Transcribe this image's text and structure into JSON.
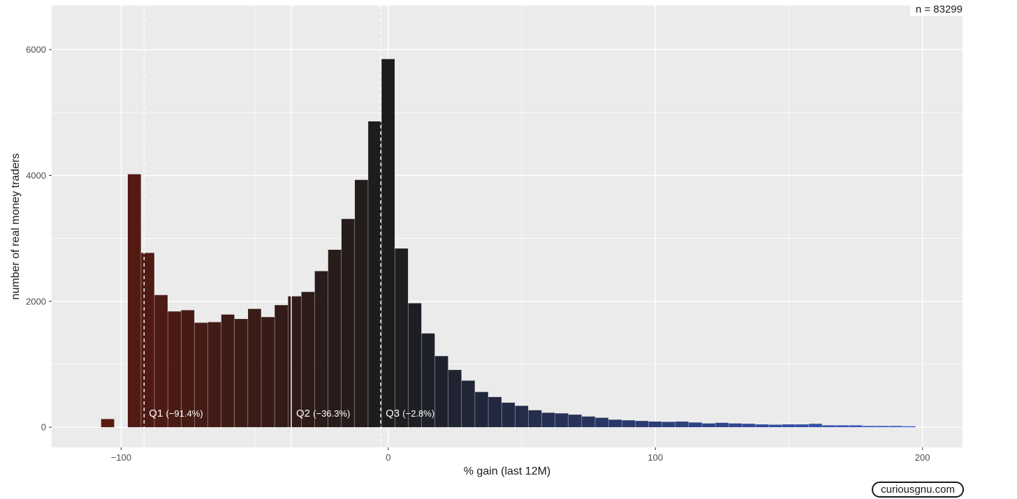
{
  "chart_data": {
    "type": "bar",
    "subtype": "histogram",
    "xlabel": "% gain (last 12M)",
    "ylabel": "number of real money traders",
    "xlim": [
      -126,
      215
    ],
    "ylim": [
      -320,
      6700
    ],
    "xticks": [
      -100,
      0,
      100,
      200
    ],
    "xtick_labels": [
      "−100",
      "0",
      "100",
      "200"
    ],
    "yticks": [
      0,
      2000,
      4000,
      6000
    ],
    "ytick_labels": [
      "0",
      "2000",
      "4000",
      "6000"
    ],
    "grid": true,
    "bin_width": 5,
    "bins": [
      {
        "x0": -107.5,
        "value": 130
      },
      {
        "x0": -97.5,
        "value": 4020
      },
      {
        "x0": -92.5,
        "value": 2770
      },
      {
        "x0": -87.5,
        "value": 2100
      },
      {
        "x0": -82.5,
        "value": 1840
      },
      {
        "x0": -77.5,
        "value": 1860
      },
      {
        "x0": -72.5,
        "value": 1660
      },
      {
        "x0": -67.5,
        "value": 1670
      },
      {
        "x0": -62.5,
        "value": 1790
      },
      {
        "x0": -57.5,
        "value": 1720
      },
      {
        "x0": -52.5,
        "value": 1880
      },
      {
        "x0": -47.5,
        "value": 1750
      },
      {
        "x0": -42.5,
        "value": 1940
      },
      {
        "x0": -37.5,
        "value": 2080
      },
      {
        "x0": -32.5,
        "value": 2150
      },
      {
        "x0": -27.5,
        "value": 2480
      },
      {
        "x0": -22.5,
        "value": 2820
      },
      {
        "x0": -17.5,
        "value": 3310
      },
      {
        "x0": -12.5,
        "value": 3930
      },
      {
        "x0": -7.5,
        "value": 4860
      },
      {
        "x0": -2.5,
        "value": 5850
      },
      {
        "x0": 2.5,
        "value": 2840
      },
      {
        "x0": 7.5,
        "value": 1970
      },
      {
        "x0": 12.5,
        "value": 1490
      },
      {
        "x0": 17.5,
        "value": 1130
      },
      {
        "x0": 22.5,
        "value": 910
      },
      {
        "x0": 27.5,
        "value": 740
      },
      {
        "x0": 32.5,
        "value": 560
      },
      {
        "x0": 37.5,
        "value": 480
      },
      {
        "x0": 42.5,
        "value": 390
      },
      {
        "x0": 47.5,
        "value": 340
      },
      {
        "x0": 52.5,
        "value": 270
      },
      {
        "x0": 57.5,
        "value": 230
      },
      {
        "x0": 62.5,
        "value": 220
      },
      {
        "x0": 67.5,
        "value": 200
      },
      {
        "x0": 72.5,
        "value": 170
      },
      {
        "x0": 77.5,
        "value": 150
      },
      {
        "x0": 82.5,
        "value": 120
      },
      {
        "x0": 87.5,
        "value": 110
      },
      {
        "x0": 92.5,
        "value": 100
      },
      {
        "x0": 97.5,
        "value": 90
      },
      {
        "x0": 102.5,
        "value": 85
      },
      {
        "x0": 107.5,
        "value": 90
      },
      {
        "x0": 112.5,
        "value": 75
      },
      {
        "x0": 117.5,
        "value": 60
      },
      {
        "x0": 122.5,
        "value": 70
      },
      {
        "x0": 127.5,
        "value": 60
      },
      {
        "x0": 132.5,
        "value": 55
      },
      {
        "x0": 137.5,
        "value": 45
      },
      {
        "x0": 142.5,
        "value": 40
      },
      {
        "x0": 147.5,
        "value": 45
      },
      {
        "x0": 152.5,
        "value": 45
      },
      {
        "x0": 157.5,
        "value": 55
      },
      {
        "x0": 162.5,
        "value": 30
      },
      {
        "x0": 167.5,
        "value": 30
      },
      {
        "x0": 172.5,
        "value": 30
      },
      {
        "x0": 177.5,
        "value": 20
      },
      {
        "x0": 182.5,
        "value": 20
      },
      {
        "x0": 187.5,
        "value": 20
      },
      {
        "x0": 192.5,
        "value": 15
      }
    ],
    "quartiles": [
      {
        "name": "Q1",
        "value": -91.4,
        "label_value": "(−91.4%)",
        "style": "dashed"
      },
      {
        "name": "Q2",
        "value": -36.3,
        "label_value": "(−36.3%)",
        "style": "solid"
      },
      {
        "name": "Q3",
        "value": -2.8,
        "label_value": "(−2.8%)",
        "style": "dashed"
      }
    ],
    "color_gradient": [
      "#5a1a12",
      "#1c1c1c",
      "#3a5ccc"
    ],
    "colors": {
      "panel_bg": "#ebebeb",
      "grid": "#ffffff",
      "quartile_line": "#ffffff"
    }
  },
  "annotation": {
    "n_label": "n =  83299"
  },
  "branding": {
    "watermark": "curiousgnu.com"
  }
}
